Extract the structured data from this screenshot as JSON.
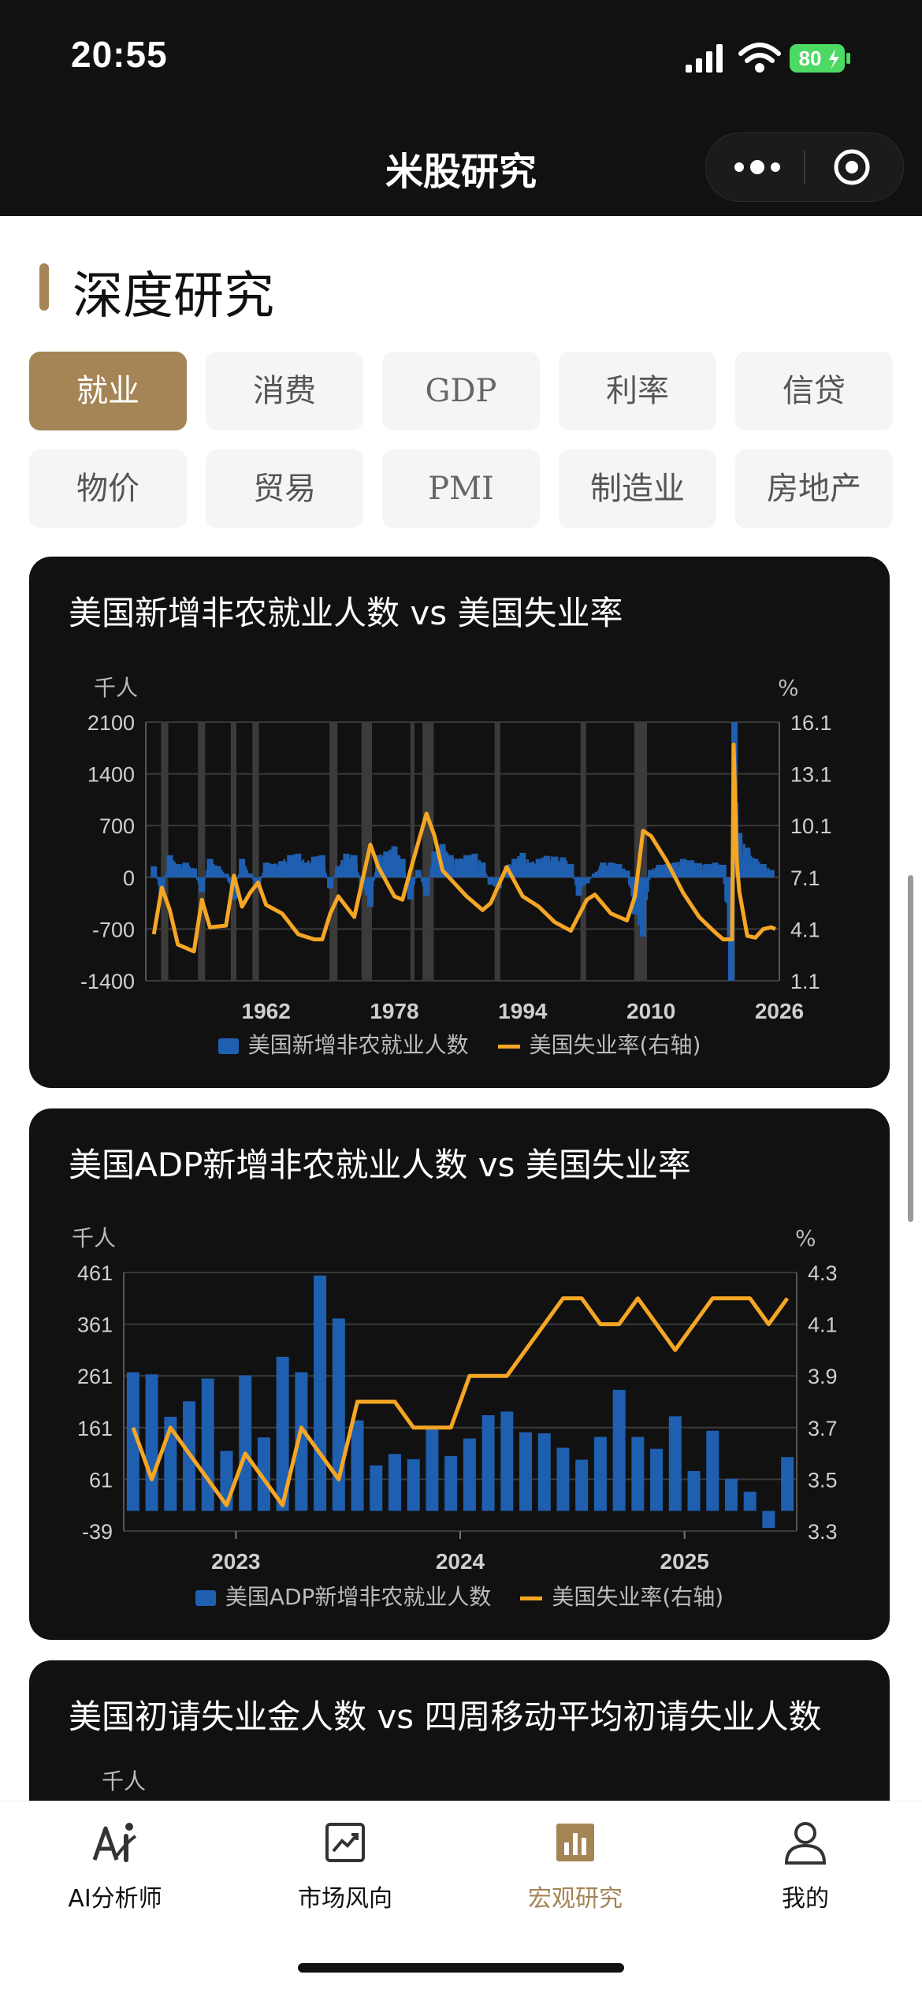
{
  "status_bar": {
    "time": "20:55",
    "battery": "80"
  },
  "nav": {
    "title": "米股研究"
  },
  "section": {
    "title": "深度研究"
  },
  "tabs": [
    {
      "label": "就业",
      "active": true
    },
    {
      "label": "消费"
    },
    {
      "label": "GDP"
    },
    {
      "label": "利率"
    },
    {
      "label": "信贷"
    },
    {
      "label": "物价"
    },
    {
      "label": "贸易"
    },
    {
      "label": "PMI"
    },
    {
      "label": "制造业"
    },
    {
      "label": "房地产"
    }
  ],
  "charts": [
    {
      "title": "美国新增非农就业人数 vs 美国失业率",
      "left_unit": "千人",
      "right_unit": "%",
      "legend_bar": "美国新增非农就业人数",
      "legend_line": "美国失业率(右轴)"
    },
    {
      "title": "美国ADP新增非农就业人数 vs 美国失业率",
      "left_unit": "千人",
      "right_unit": "%",
      "legend_bar": "美国ADP新增非农就业人数",
      "legend_line": "美国失业率(右轴)"
    },
    {
      "title": "美国初请失业金人数 vs 四周移动平均初请失业人数",
      "left_unit": "千人"
    }
  ],
  "chart_data": [
    {
      "type": "bar",
      "title": "美国新增非农就业人数 vs 美国失业率",
      "left_axis": {
        "unit": "千人",
        "ticks": [
          "2100",
          "1400",
          "700",
          "0",
          "-700",
          "-1400"
        ],
        "range": [
          -1400,
          2100
        ]
      },
      "right_axis": {
        "unit": "%",
        "ticks": [
          "16.1",
          "13.1",
          "10.1",
          "7.1",
          "4.1",
          "1.1"
        ],
        "range": [
          1.1,
          16.1
        ]
      },
      "x_ticks": [
        "1962",
        "1978",
        "1994",
        "2010",
        "2026"
      ],
      "x_range": [
        1947,
        2026
      ],
      "recessions": [
        [
          1948.9,
          1949.8
        ],
        [
          1953.5,
          1954.4
        ],
        [
          1957.6,
          1958.3
        ],
        [
          1960.3,
          1961.1
        ],
        [
          1969.9,
          1970.9
        ],
        [
          1973.9,
          1975.2
        ],
        [
          1980.0,
          1980.5
        ],
        [
          1981.5,
          1982.9
        ],
        [
          1990.5,
          1991.2
        ],
        [
          2001.2,
          2001.9
        ],
        [
          2007.9,
          2009.5
        ],
        [
          2020.1,
          2020.4
        ]
      ],
      "series": [
        {
          "name": "美国新增非农就业人数",
          "kind": "bar",
          "axis": "left",
          "points": [
            [
              1948,
              150
            ],
            [
              1949,
              -250
            ],
            [
              1950,
              300
            ],
            [
              1951,
              180
            ],
            [
              1952,
              200
            ],
            [
              1953,
              120
            ],
            [
              1954,
              -200
            ],
            [
              1955,
              250
            ],
            [
              1956,
              150
            ],
            [
              1957,
              50
            ],
            [
              1958,
              -300
            ],
            [
              1959,
              250
            ],
            [
              1960,
              50
            ],
            [
              1961,
              -150
            ],
            [
              1962,
              200
            ],
            [
              1963,
              180
            ],
            [
              1964,
              220
            ],
            [
              1965,
              300
            ],
            [
              1966,
              320
            ],
            [
              1967,
              200
            ],
            [
              1968,
              280
            ],
            [
              1969,
              300
            ],
            [
              1970,
              -150
            ],
            [
              1971,
              150
            ],
            [
              1972,
              320
            ],
            [
              1973,
              300
            ],
            [
              1974,
              -100
            ],
            [
              1975,
              -400
            ],
            [
              1976,
              300
            ],
            [
              1977,
              350
            ],
            [
              1978,
              420
            ],
            [
              1979,
              250
            ],
            [
              1980,
              -300
            ],
            [
              1981,
              100
            ],
            [
              1982,
              -250
            ],
            [
              1983,
              350
            ],
            [
              1984,
              450
            ],
            [
              1985,
              300
            ],
            [
              1986,
              250
            ],
            [
              1987,
              300
            ],
            [
              1988,
              320
            ],
            [
              1989,
              200
            ],
            [
              1990,
              -100
            ],
            [
              1991,
              -150
            ],
            [
              1992,
              150
            ],
            [
              1993,
              250
            ],
            [
              1994,
              330
            ],
            [
              1995,
              200
            ],
            [
              1996,
              250
            ],
            [
              1997,
              290
            ],
            [
              1998,
              280
            ],
            [
              1999,
              270
            ],
            [
              2000,
              180
            ],
            [
              2001,
              -250
            ],
            [
              2002,
              -80
            ],
            [
              2003,
              50
            ],
            [
              2004,
              200
            ],
            [
              2005,
              200
            ],
            [
              2006,
              180
            ],
            [
              2007,
              90
            ],
            [
              2008,
              -500
            ],
            [
              2009,
              -800
            ],
            [
              2010,
              100
            ],
            [
              2011,
              170
            ],
            [
              2012,
              180
            ],
            [
              2013,
              200
            ],
            [
              2014,
              250
            ],
            [
              2015,
              230
            ],
            [
              2016,
              190
            ],
            [
              2017,
              180
            ],
            [
              2018,
              200
            ],
            [
              2019,
              170
            ],
            [
              2020,
              -1400
            ],
            [
              2020.4,
              2100
            ],
            [
              2021,
              600
            ],
            [
              2022,
              400
            ],
            [
              2023,
              250
            ],
            [
              2024,
              180
            ],
            [
              2025,
              100
            ]
          ]
        },
        {
          "name": "美国失业率(右轴)",
          "kind": "line",
          "axis": "right",
          "points": [
            [
              1948,
              3.8
            ],
            [
              1949,
              6.5
            ],
            [
              1950,
              5.2
            ],
            [
              1951,
              3.2
            ],
            [
              1953,
              2.8
            ],
            [
              1954,
              5.8
            ],
            [
              1955,
              4.2
            ],
            [
              1957,
              4.3
            ],
            [
              1958,
              7.2
            ],
            [
              1959,
              5.4
            ],
            [
              1960,
              6.2
            ],
            [
              1961,
              6.8
            ],
            [
              1962,
              5.5
            ],
            [
              1964,
              5.0
            ],
            [
              1966,
              3.8
            ],
            [
              1968,
              3.5
            ],
            [
              1969,
              3.5
            ],
            [
              1970,
              5.0
            ],
            [
              1971,
              6.0
            ],
            [
              1973,
              4.8
            ],
            [
              1975,
              9.0
            ],
            [
              1976,
              7.7
            ],
            [
              1978,
              6.0
            ],
            [
              1979,
              5.8
            ],
            [
              1980,
              7.5
            ],
            [
              1982,
              10.8
            ],
            [
              1983,
              9.5
            ],
            [
              1984,
              7.5
            ],
            [
              1987,
              6.0
            ],
            [
              1989,
              5.2
            ],
            [
              1990,
              5.6
            ],
            [
              1992,
              7.7
            ],
            [
              1994,
              6.0
            ],
            [
              1996,
              5.4
            ],
            [
              1998,
              4.5
            ],
            [
              2000,
              4.0
            ],
            [
              2002,
              5.8
            ],
            [
              2003,
              6.1
            ],
            [
              2005,
              5.0
            ],
            [
              2007,
              4.6
            ],
            [
              2008,
              6.0
            ],
            [
              2009,
              9.8
            ],
            [
              2010,
              9.5
            ],
            [
              2012,
              8.0
            ],
            [
              2014,
              6.2
            ],
            [
              2016,
              4.8
            ],
            [
              2018,
              3.9
            ],
            [
              2019,
              3.5
            ],
            [
              2020.1,
              3.5
            ],
            [
              2020.3,
              14.8
            ],
            [
              2020.7,
              8.0
            ],
            [
              2021,
              6.3
            ],
            [
              2022,
              3.7
            ],
            [
              2023,
              3.6
            ],
            [
              2024,
              4.1
            ],
            [
              2025,
              4.2
            ],
            [
              2025.5,
              4.1
            ]
          ]
        }
      ],
      "legend": {
        "position": "bottom",
        "entries": [
          "美国新增非农就业人数",
          "美国失业率(右轴)"
        ]
      },
      "grid": true
    },
    {
      "type": "bar",
      "title": "美国ADP新增非农就业人数 vs 美国失业率",
      "left_axis": {
        "unit": "千人",
        "ticks": [
          "461",
          "361",
          "261",
          "161",
          "61",
          "-39"
        ],
        "range": [
          -39,
          461
        ]
      },
      "right_axis": {
        "unit": "%",
        "ticks": [
          "4.3",
          "4.1",
          "3.9",
          "3.7",
          "3.5",
          "3.3"
        ],
        "range": [
          3.3,
          4.3
        ]
      },
      "x_ticks": [
        "2023",
        "2024",
        "2025"
      ],
      "x_start": "2022-07",
      "series": [
        {
          "name": "美国ADP新增非农就业人数",
          "kind": "bar",
          "axis": "left",
          "values": [
            268,
            264,
            182,
            212,
            256,
            116,
            262,
            142,
            298,
            268,
            455,
            372,
            175,
            88,
            110,
            100,
            160,
            106,
            140,
            185,
            192,
            152,
            150,
            122,
            99,
            143,
            234,
            143,
            120,
            183,
            77,
            155,
            62,
            37,
            -33,
            104
          ]
        },
        {
          "name": "美国失业率(右轴)",
          "kind": "line",
          "axis": "right",
          "values": [
            3.7,
            3.5,
            3.7,
            3.6,
            3.5,
            3.4,
            3.6,
            3.5,
            3.4,
            3.7,
            3.6,
            3.5,
            3.8,
            3.8,
            3.8,
            3.7,
            3.7,
            3.7,
            3.9,
            3.9,
            3.9,
            4.0,
            4.1,
            4.2,
            4.2,
            4.1,
            4.1,
            4.2,
            4.1,
            4.0,
            4.1,
            4.2,
            4.2,
            4.2,
            4.1,
            4.2
          ]
        }
      ],
      "legend": {
        "position": "bottom",
        "entries": [
          "美国ADP新增非农就业人数",
          "美国失业率(右轴)"
        ]
      },
      "grid": true
    }
  ],
  "tabbar": [
    {
      "label": "AI分析师",
      "icon": "ai-analyst-icon"
    },
    {
      "label": "市场风向",
      "icon": "market-trend-icon"
    },
    {
      "label": "宏观研究",
      "icon": "macro-research-icon",
      "active": true
    },
    {
      "label": "我的",
      "icon": "profile-icon"
    }
  ],
  "colors": {
    "accent": "#a58456",
    "bar": "#1f5fb0",
    "line": "#f5a623",
    "card": "#111111"
  }
}
